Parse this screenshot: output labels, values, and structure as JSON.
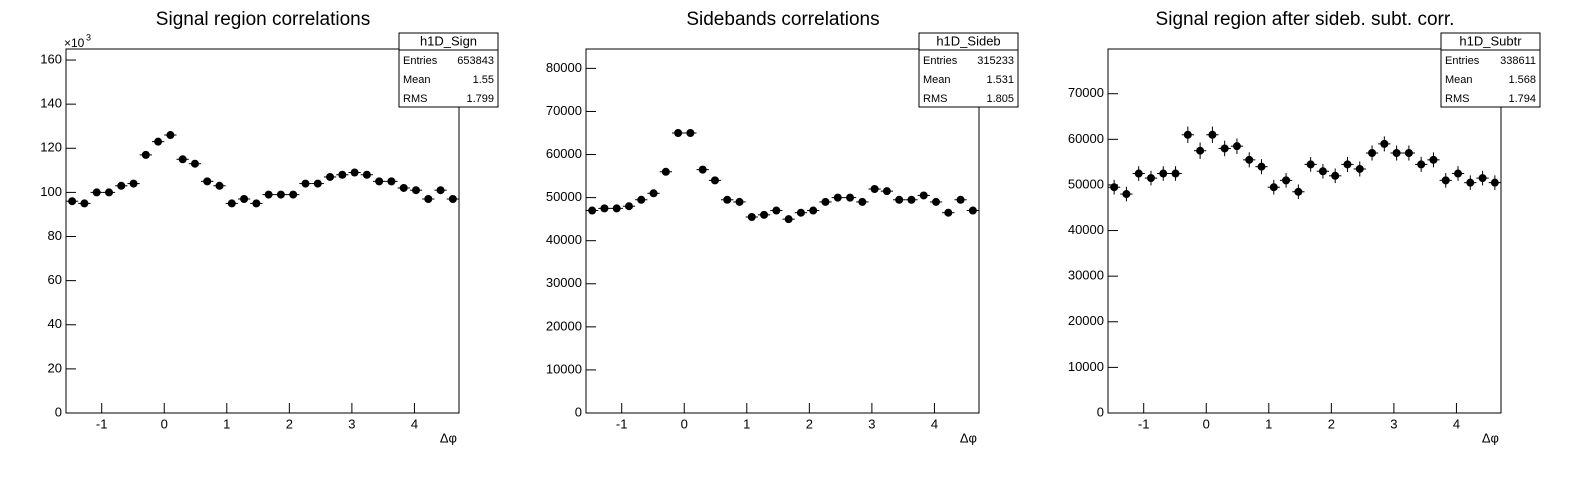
{
  "chart_data": [
    {
      "type": "histogram",
      "title": "Signal region correlations",
      "xlabel": "Δφ",
      "y_multiplier": {
        "base": "×10",
        "exponent": "3"
      },
      "bins": [
        -1.5708,
        -1.3744,
        -1.1781,
        -0.9817,
        -0.7854,
        -0.589,
        -0.3927,
        -0.1963,
        0,
        0.1963,
        0.3927,
        0.589,
        0.7854,
        0.9817,
        1.1781,
        1.3744,
        1.5708,
        1.7671,
        1.9635,
        2.1598,
        2.3562,
        2.5525,
        2.7489,
        2.9452,
        3.1416,
        3.3379,
        3.5343,
        3.7306,
        3.927,
        4.1233,
        4.3197,
        4.516,
        4.7124
      ],
      "values": [
        96,
        95,
        100,
        100,
        103,
        104,
        117,
        123,
        126,
        115,
        113,
        105,
        103,
        95,
        97,
        95,
        99,
        99,
        99,
        104,
        104,
        107,
        108,
        109,
        108,
        105,
        105,
        102,
        101,
        97,
        101,
        97
      ],
      "errors": [
        0.3,
        0.3,
        0.3,
        0.3,
        0.3,
        0.3,
        0.3,
        0.3,
        0.3,
        0.3,
        0.3,
        0.3,
        0.3,
        0.3,
        0.3,
        0.3,
        0.3,
        0.3,
        0.3,
        0.3,
        0.3,
        0.3,
        0.3,
        0.3,
        0.3,
        0.3,
        0.3,
        0.3,
        0.3,
        0.3,
        0.3,
        0.3
      ],
      "color": "#000000",
      "xlim": [
        -1.5708,
        4.7124
      ],
      "xticks": [
        -1,
        0,
        1,
        2,
        3,
        4
      ],
      "ylim": [
        0,
        165
      ],
      "yticks": [
        0,
        20,
        40,
        60,
        80,
        100,
        120,
        140,
        160
      ],
      "stats": {
        "title": "h1D_Sign",
        "rows": [
          {
            "label": "Entries",
            "value": 653843
          },
          {
            "label": "Mean",
            "value": 1.55
          },
          {
            "label": "RMS",
            "value": 1.799
          }
        ]
      }
    },
    {
      "type": "histogram",
      "title": "Sidebands correlations",
      "xlabel": "Δφ",
      "bins": [
        -1.5708,
        -1.3744,
        -1.1781,
        -0.9817,
        -0.7854,
        -0.589,
        -0.3927,
        -0.1963,
        0,
        0.1963,
        0.3927,
        0.589,
        0.7854,
        0.9817,
        1.1781,
        1.3744,
        1.5708,
        1.7671,
        1.9635,
        2.1598,
        2.3562,
        2.5525,
        2.7489,
        2.9452,
        3.1416,
        3.3379,
        3.5343,
        3.7306,
        3.927,
        4.1233,
        4.3197,
        4.516,
        4.7124
      ],
      "values": [
        47000,
        47500,
        47500,
        48000,
        49500,
        51000,
        56000,
        65000,
        65000,
        56500,
        54000,
        49500,
        49000,
        45500,
        46000,
        47000,
        45000,
        46500,
        47000,
        49000,
        50000,
        50000,
        49000,
        52000,
        51500,
        49500,
        49500,
        50500,
        49000,
        46500,
        49500,
        47000
      ],
      "errors": [
        220,
        220,
        220,
        220,
        220,
        220,
        240,
        255,
        255,
        240,
        230,
        220,
        220,
        215,
        215,
        215,
        210,
        215,
        215,
        220,
        225,
        225,
        220,
        230,
        225,
        220,
        220,
        225,
        220,
        215,
        220,
        215
      ],
      "color": "#000000",
      "xlim": [
        -1.5708,
        4.7124
      ],
      "xticks": [
        -1,
        0,
        1,
        2,
        3,
        4
      ],
      "ylim": [
        0,
        84500
      ],
      "yticks": [
        0,
        10000,
        20000,
        30000,
        40000,
        50000,
        60000,
        70000,
        80000
      ],
      "stats": {
        "title": "h1D_Sideb",
        "rows": [
          {
            "label": "Entries",
            "value": 315233
          },
          {
            "label": "Mean",
            "value": 1.531
          },
          {
            "label": "RMS",
            "value": 1.805
          }
        ]
      }
    },
    {
      "type": "histogram",
      "title": "Signal region after sideb. subt. corr.",
      "xlabel": "Δφ",
      "bins": [
        -1.5708,
        -1.3744,
        -1.1781,
        -0.9817,
        -0.7854,
        -0.589,
        -0.3927,
        -0.1963,
        0,
        0.1963,
        0.3927,
        0.589,
        0.7854,
        0.9817,
        1.1781,
        1.3744,
        1.5708,
        1.7671,
        1.9635,
        2.1598,
        2.3562,
        2.5525,
        2.7489,
        2.9452,
        3.1416,
        3.3379,
        3.5343,
        3.7306,
        3.927,
        4.1233,
        4.3197,
        4.516,
        4.7124
      ],
      "values": [
        49500,
        48000,
        52500,
        51500,
        52500,
        52500,
        61000,
        57500,
        61000,
        58000,
        58500,
        55500,
        54000,
        49500,
        51000,
        48500,
        54500,
        53000,
        52000,
        54500,
        53500,
        57000,
        59000,
        57000,
        57000,
        54500,
        55500,
        51000,
        52500,
        50500,
        51500,
        50500
      ],
      "errors": [
        1600,
        1600,
        1600,
        1600,
        1600,
        1600,
        1800,
        1800,
        1800,
        1700,
        1700,
        1650,
        1650,
        1600,
        1600,
        1600,
        1600,
        1600,
        1600,
        1650,
        1650,
        1650,
        1650,
        1650,
        1650,
        1650,
        1650,
        1600,
        1600,
        1600,
        1600,
        1600
      ],
      "color": "#000000",
      "xlim": [
        -1.5708,
        4.7124
      ],
      "xticks": [
        -1,
        0,
        1,
        2,
        3,
        4
      ],
      "ylim": [
        0,
        79800
      ],
      "yticks": [
        0,
        10000,
        20000,
        30000,
        40000,
        50000,
        60000,
        70000
      ],
      "stats": {
        "title": "h1D_Subtr",
        "rows": [
          {
            "label": "Entries",
            "value": 338611
          },
          {
            "label": "Mean",
            "value": 1.568
          },
          {
            "label": "RMS",
            "value": 1.794
          }
        ]
      }
    }
  ]
}
